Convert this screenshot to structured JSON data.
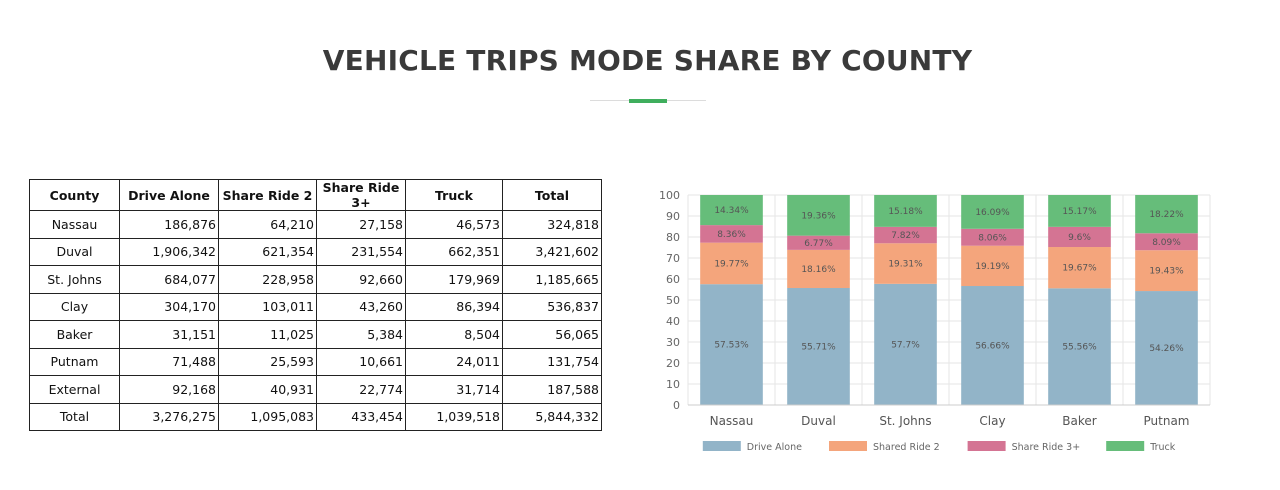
{
  "page": {
    "title": "VEHICLE TRIPS MODE SHARE BY COUNTY"
  },
  "table": {
    "headers": [
      "County",
      "Drive Alone",
      "Share Ride 2",
      "Share Ride 3+",
      "Truck",
      "Total"
    ],
    "rows": [
      [
        "Nassau",
        "186,876",
        "64,210",
        "27,158",
        "46,573",
        "324,818"
      ],
      [
        "Duval",
        "1,906,342",
        "621,354",
        "231,554",
        "662,351",
        "3,421,602"
      ],
      [
        "St. Johns",
        "684,077",
        "228,958",
        "92,660",
        "179,969",
        "1,185,665"
      ],
      [
        "Clay",
        "304,170",
        "103,011",
        "43,260",
        "86,394",
        "536,837"
      ],
      [
        "Baker",
        "31,151",
        "11,025",
        "5,384",
        "8,504",
        "56,065"
      ],
      [
        "Putnam",
        "71,488",
        "25,593",
        "10,661",
        "24,011",
        "131,754"
      ],
      [
        "External",
        "92,168",
        "40,931",
        "22,774",
        "31,714",
        "187,588"
      ],
      [
        "Total",
        "3,276,275",
        "1,095,083",
        "433,454",
        "1,039,518",
        "5,844,332"
      ]
    ]
  },
  "chart_data": {
    "type": "bar",
    "stacked": true,
    "categories": [
      "Nassau",
      "Duval",
      "St. Johns",
      "Clay",
      "Baker",
      "Putnam"
    ],
    "series": [
      {
        "name": "Drive Alone",
        "color": "#92b4c8",
        "values": [
          57.53,
          55.71,
          57.7,
          56.66,
          55.56,
          54.26
        ],
        "labels": [
          "57.53%",
          "55.71%",
          "57.7%",
          "56.66%",
          "55.56%",
          "54.26%"
        ]
      },
      {
        "name": "Shared Ride 2",
        "color": "#f4a57c",
        "values": [
          19.77,
          18.16,
          19.31,
          19.19,
          19.67,
          19.43
        ],
        "labels": [
          "19.77%",
          "18.16%",
          "19.31%",
          "19.19%",
          "19.67%",
          "19.43%"
        ]
      },
      {
        "name": "Share Ride 3+",
        "color": "#d47493",
        "values": [
          8.36,
          6.77,
          7.82,
          8.06,
          9.6,
          8.09
        ],
        "labels": [
          "8.36%",
          "6.77%",
          "7.82%",
          "8.06%",
          "9.6%",
          "8.09%"
        ]
      },
      {
        "name": "Truck",
        "color": "#66bd7a",
        "values": [
          14.34,
          19.36,
          15.18,
          16.09,
          15.17,
          18.22
        ],
        "labels": [
          "14.34%",
          "19.36%",
          "15.18%",
          "16.09%",
          "15.17%",
          "18.22%"
        ]
      }
    ],
    "y_ticks": [
      "0",
      "10",
      "20",
      "30",
      "40",
      "50",
      "60",
      "70",
      "80",
      "90",
      "100"
    ],
    "ylim": [
      0,
      100
    ],
    "grid": true,
    "legend_position": "bottom"
  }
}
